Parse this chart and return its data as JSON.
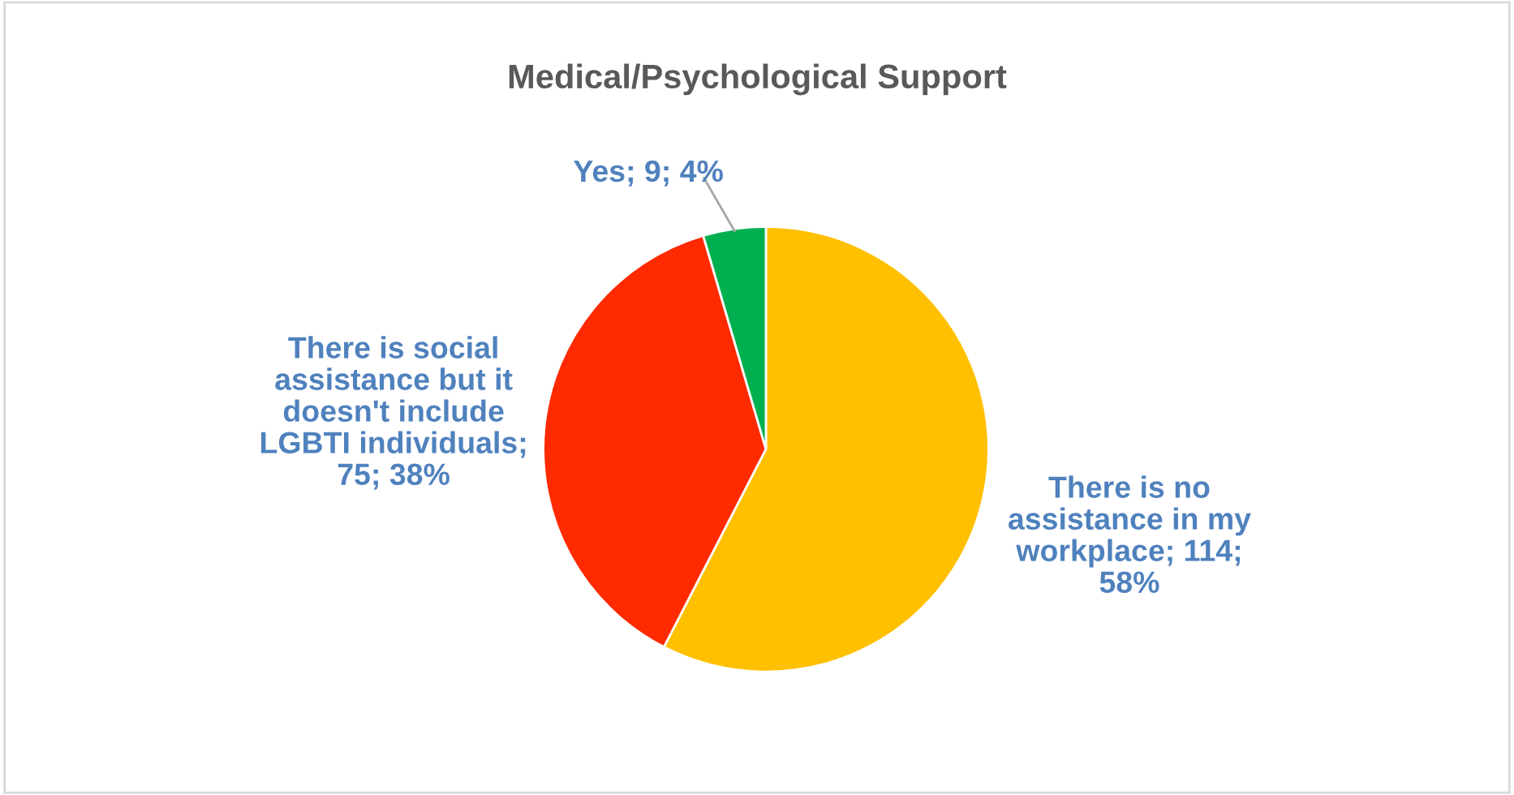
{
  "chart_data": {
    "type": "pie",
    "title": "Medical/Psychological Support",
    "categories": [
      "There is no assistance in my workplace",
      "There is social assistance but it doesn't include LGBTI individuals",
      "Yes"
    ],
    "values": [
      114,
      75,
      9
    ],
    "value_labels": [
      "; 114; 58%",
      "; 75; 38%",
      "; 9; 4%"
    ],
    "colors": [
      "#ffc000",
      "#ff2a00",
      "#00b050"
    ],
    "legend": false
  }
}
